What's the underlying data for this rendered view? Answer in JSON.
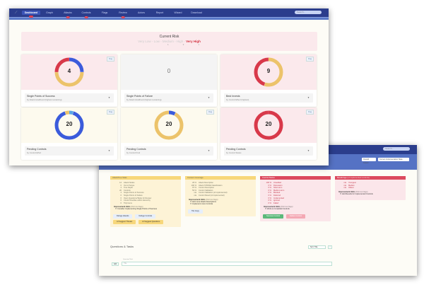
{
  "colors": {
    "navy": "#2b3d8c",
    "blue": "#3b5bdb",
    "lightblue": "#5aa6e6",
    "yellow": "#ecc36a",
    "red": "#d8394a"
  },
  "nav": {
    "items": [
      {
        "label": "Dashboard",
        "badge": "",
        "active": true
      },
      {
        "label": "Graph"
      },
      {
        "label": "Attacks",
        "badge": "!"
      },
      {
        "label": "Controls",
        "badge": "!"
      },
      {
        "label": "Flags"
      },
      {
        "label": "Review",
        "badge": "!"
      },
      {
        "label": "Actors"
      },
      {
        "label": "Report"
      },
      {
        "label": "Wizard"
      },
      {
        "label": "Download"
      }
    ],
    "search_placeholder": "Search..."
  },
  "risk": {
    "title": "Current Risk",
    "levels": [
      "Very Low",
      "Low",
      "Medium",
      "High",
      "Very High"
    ],
    "current": "Very High",
    "counts": [
      "1",
      "3",
      "1"
    ]
  },
  "flag_label": "Flag",
  "cards": [
    {
      "value": "4",
      "title": "Single Points of Success",
      "subtitle": "by Attack Likelihood (highest remaining)",
      "bg": "#fbe9ec",
      "segments": [
        {
          "color": "#3b5bdb",
          "fraction": 0.25
        },
        {
          "color": "#ecc36a",
          "fraction": 0.5
        },
        {
          "color": "#d8394a",
          "fraction": 0.25
        }
      ]
    },
    {
      "value": "0",
      "title": "Single Points of Failure",
      "subtitle": "by Attack Likelihood (highest remaining)",
      "bg": "#f4f4f4",
      "segments": []
    },
    {
      "value": "9",
      "title": "Best Invests",
      "subtitle": "by Control Effect (highest)",
      "bg": "#fbe9ec",
      "segments": [
        {
          "color": "#ecc36a",
          "fraction": 0.55
        },
        {
          "color": "#d8394a",
          "fraction": 0.45
        }
      ]
    },
    {
      "value": "20",
      "title": "Pending Controls",
      "subtitle": "by Control Effort",
      "bg": "#fdfaee",
      "segments": [
        {
          "color": "#5aa6e6",
          "fraction": 0.05
        },
        {
          "color": "#3b5bdb",
          "fraction": 0.9
        },
        {
          "color": "#ecc36a",
          "fraction": 0.05
        }
      ]
    },
    {
      "value": "20",
      "title": "Pending Controls",
      "subtitle": "by Control Kind",
      "bg": "#fdfaee",
      "segments": [
        {
          "color": "#3b5bdb",
          "fraction": 0.08
        },
        {
          "color": "#ecc36a",
          "fraction": 0.92
        }
      ]
    },
    {
      "value": "20",
      "title": "Pending Controls",
      "subtitle": "by Control Status",
      "bg": "#fbe9ec",
      "segments": [
        {
          "color": "#d8394a",
          "fraction": 1
        }
      ]
    }
  ],
  "back": {
    "search_placeholder": "Search...",
    "dropdowns": [
      "Overall Impact",
      "Current Implementation State"
    ],
    "panels": [
      {
        "title": "AttackTree Stats",
        "rows": [
          [
            "14",
            "Attack Nodes"
          ],
          [
            "0",
            "Out of Scope"
          ],
          [
            "4",
            "Tree Depth"
          ],
          [
            "20",
            "Controls"
          ],
          [
            "4",
            "Single Points of Success"
          ],
          [
            "0",
            "Single Points of Failure"
          ],
          [
            "0",
            "Open Questions/Tasks for Review"
          ],
          [
            "0",
            "Control Doubles within Hierarchy"
          ],
          [
            "0",
            "Tidy Items"
          ]
        ],
        "imp": "Improvement Hints",
        "imp_note": "(Roll via Flags)",
        "hints": [
          "Consider Implementing Single Points of Success"
        ],
        "buttons": [
          "Defuge Attacks",
          "Defuge Controls",
          "AI Suggest Threats",
          "AI Suggest Questions"
        ]
      },
      {
        "title": "Content Coverage",
        "rows": [
          [
            "29 %",
            "Attack Description"
          ],
          [
            "100 %",
            "Attack STRIDE Classification"
          ],
          [
            "97 %",
            "Control Description"
          ],
          [
            "53 %",
            "Control Validation"
          ],
          [
            "n/a",
            "Control Validation (of implemented)"
          ],
          [
            "n/a",
            "Control Result (of implemented)"
          ]
        ],
        "imp": "Improvement Hints",
        "imp_note": "(Roll via Flags)",
        "hints": [
          "Add more Attack Descriptions",
          "Implement more Controls"
        ],
        "buttons": [
          "Tile Copy"
        ]
      },
      {
        "title": "Control Status",
        "rows": [
          [
            "100 %",
            "Unsettled"
          ],
          [
            "0 %",
            "Discussion"
          ],
          [
            "0 %",
            "Short-term"
          ],
          [
            "0 %",
            "Medium-term"
          ],
          [
            "0 %",
            "Blocked"
          ],
          [
            "0 %",
            "Deferred"
          ],
          [
            "0 %",
            "Implemented"
          ],
          [
            "0 %",
            "Ignored"
          ],
          [
            "0 %",
            "Failed"
          ]
        ],
        "imp": "Improvement Hints",
        "imp_note": "(Roll via Flags)",
        "hints": [
          "Work on Unsettled Controls"
        ],
        "buttons": [
          "Success Control",
          "Failure Control"
        ]
      },
      {
        "title": "Result Age",
        "title_note": "(of implemented controls)",
        "rows": [
          [
            "n/a",
            "Youngest"
          ],
          [
            "n/a",
            "Median"
          ],
          [
            "n/a",
            "Oldest"
          ]
        ],
        "imp": "Improvement Hints",
        "imp_note": "(Roll via Flags)",
        "hints": [
          "Add Results for Implemented Controls"
        ],
        "buttons": []
      }
    ],
    "questions": {
      "title": "Questions & Tasks",
      "sort": "Sort: Title",
      "add_label": "Add",
      "field_label": "Question/Task",
      "field_placeholder": "Title"
    }
  }
}
